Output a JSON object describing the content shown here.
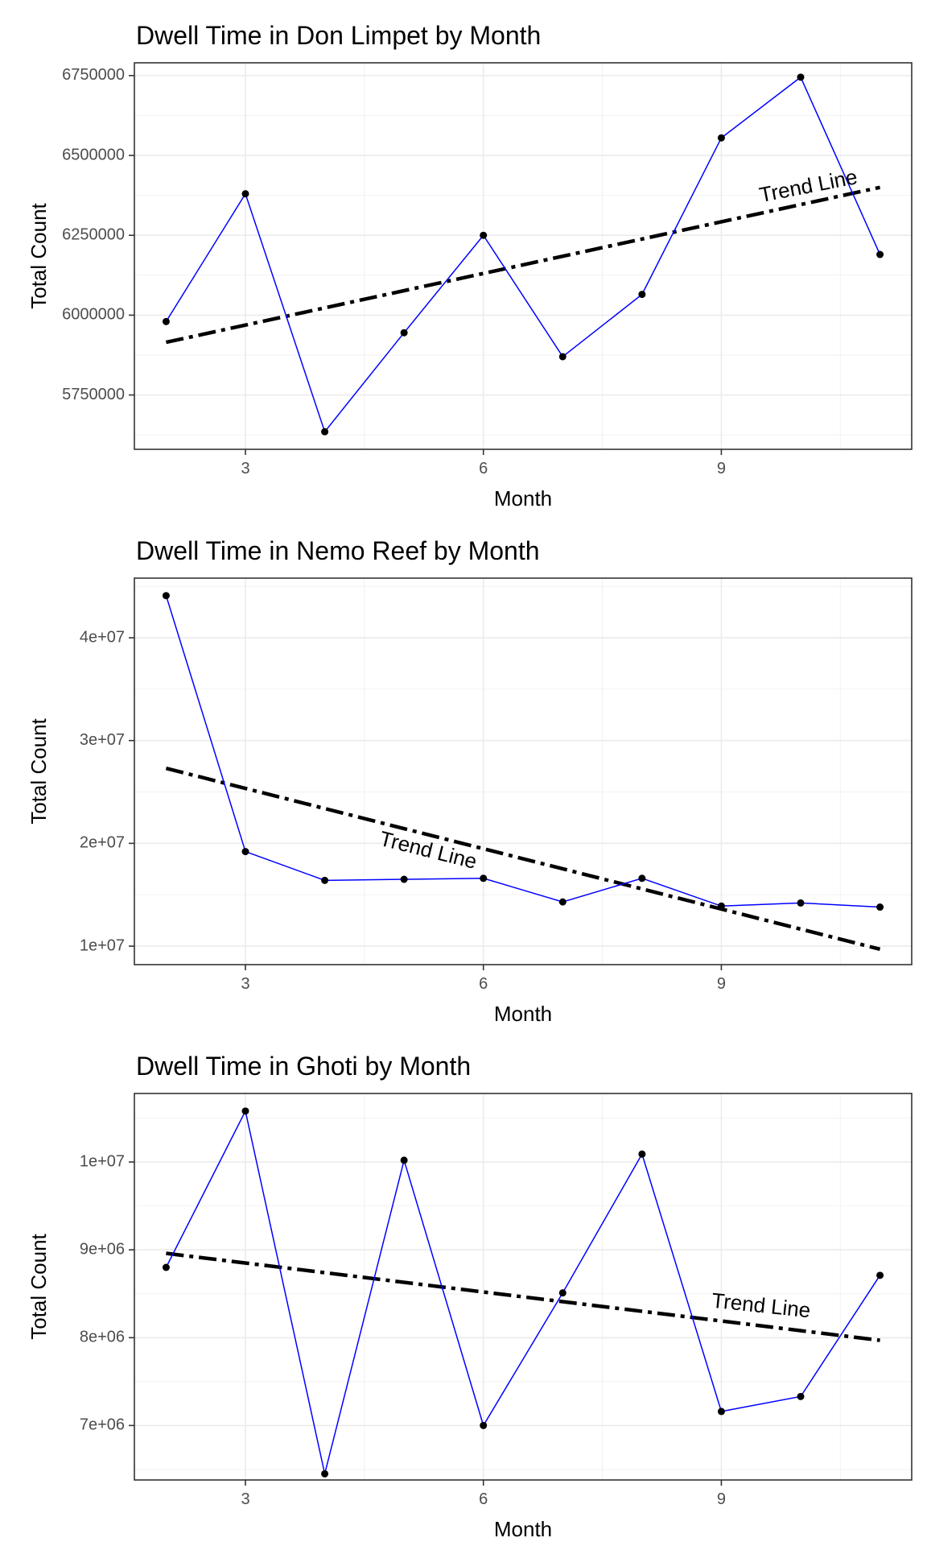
{
  "chart_data": [
    {
      "type": "line",
      "title": "Dwell Time in Don Limpet by Month",
      "xlabel": "Month",
      "ylabel": "Total Count",
      "xlim": [
        1.6,
        11.4
      ],
      "ylim": [
        5580000,
        6790000
      ],
      "x_ticks": [
        3,
        6,
        9
      ],
      "x_tick_labels": [
        "3",
        "6",
        "9"
      ],
      "y_ticks": [
        5750000,
        6000000,
        6250000,
        6500000,
        6750000
      ],
      "y_tick_labels": [
        "5750000",
        "6000000",
        "6250000",
        "6500000",
        "6750000"
      ],
      "grid": true,
      "legend": "none",
      "series": [
        {
          "x": [
            2,
            3,
            4,
            5,
            6,
            7,
            8,
            9,
            10,
            11
          ],
          "values": [
            5980000,
            6380000,
            5635000,
            5945000,
            6250000,
            5870000,
            6065000,
            6555000,
            6745000,
            6190000
          ],
          "color": "#0000ff"
        }
      ],
      "trend": {
        "label": "Trend Line",
        "x": [
          2,
          11
        ],
        "values": [
          5915000,
          6400000
        ],
        "label_x": 10.1,
        "label_value": 6400000,
        "label_angle": -11
      }
    },
    {
      "type": "line",
      "title": "Dwell Time in Nemo Reef by Month",
      "xlabel": "Month",
      "ylabel": "Total Count",
      "xlim": [
        1.6,
        11.4
      ],
      "ylim": [
        8200000,
        45800000
      ],
      "x_ticks": [
        3,
        6,
        9
      ],
      "x_tick_labels": [
        "3",
        "6",
        "9"
      ],
      "y_ticks": [
        10000000,
        20000000,
        30000000,
        40000000
      ],
      "y_tick_labels": [
        "1e+07",
        "2e+07",
        "3e+07",
        "4e+07"
      ],
      "grid": true,
      "legend": "none",
      "series": [
        {
          "x": [
            2,
            3,
            4,
            5,
            6,
            7,
            8,
            9,
            10,
            11
          ],
          "values": [
            44100000,
            19200000,
            16400000,
            16500000,
            16600000,
            14300000,
            16600000,
            13900000,
            14200000,
            13800000
          ],
          "color": "#0000ff"
        }
      ],
      "trend": {
        "label": "Trend Line",
        "x": [
          2,
          11
        ],
        "values": [
          27300000,
          9700000
        ],
        "label_x": 5.3,
        "label_value": 19200000,
        "label_angle": 14
      }
    },
    {
      "type": "line",
      "title": "Dwell Time in Ghoti by Month",
      "xlabel": "Month",
      "ylabel": "Total Count",
      "xlim": [
        1.6,
        11.4
      ],
      "ylim": [
        6380000,
        10780000
      ],
      "x_ticks": [
        3,
        6,
        9
      ],
      "x_tick_labels": [
        "3",
        "6",
        "9"
      ],
      "y_ticks": [
        7000000,
        8000000,
        9000000,
        10000000
      ],
      "y_tick_labels": [
        "7e+06",
        "8e+06",
        "9e+06",
        "1e+07"
      ],
      "grid": true,
      "legend": "none",
      "series": [
        {
          "x": [
            2,
            3,
            4,
            5,
            6,
            7,
            8,
            9,
            10,
            11
          ],
          "values": [
            8800000,
            10580000,
            6450000,
            10020000,
            7000000,
            8510000,
            10090000,
            7160000,
            7330000,
            8710000
          ],
          "color": "#0000ff"
        }
      ],
      "trend": {
        "label": "Trend Line",
        "x": [
          2,
          11
        ],
        "values": [
          8960000,
          7970000
        ],
        "label_x": 9.5,
        "label_value": 8350000,
        "label_angle": 6
      }
    }
  ]
}
